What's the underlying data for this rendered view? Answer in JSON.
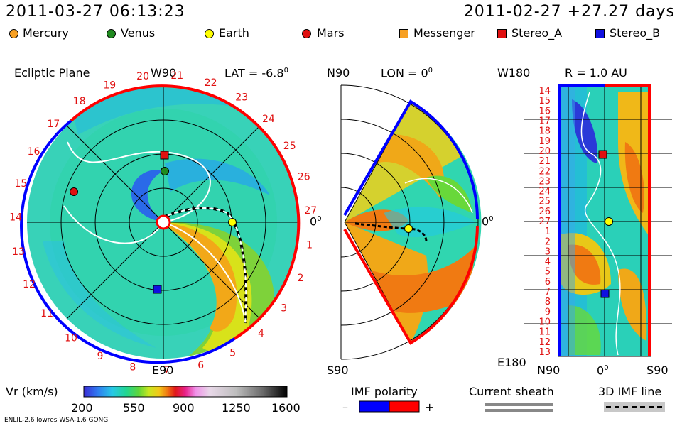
{
  "header": {
    "datetime": "2011-03-27 06:13:23",
    "reference": "2011-02-27 +27.27 days"
  },
  "legend": [
    {
      "name": "Mercury",
      "color": "#f7a023",
      "shape": "circle"
    },
    {
      "name": "Venus",
      "color": "#1f8a1f",
      "shape": "circle"
    },
    {
      "name": "Earth",
      "color": "#ffff00",
      "shape": "circle"
    },
    {
      "name": "Mars",
      "color": "#e01010",
      "shape": "circle"
    },
    {
      "name": "Messenger",
      "color": "#f7a023",
      "shape": "square"
    },
    {
      "name": "Stereo_A",
      "color": "#e01010",
      "shape": "square"
    },
    {
      "name": "Stereo_B",
      "color": "#1010e0",
      "shape": "square"
    }
  ],
  "panels": {
    "ecliptic": {
      "title": "Ecliptic Plane",
      "lat_label": "LAT = -6.8",
      "deg": "0",
      "top_label": "W90",
      "bottom_label": "E90",
      "right_label": "0",
      "rotation_numbers": [
        "20",
        "21",
        "22",
        "23",
        "24",
        "25",
        "26",
        "27",
        "1",
        "2",
        "3",
        "4",
        "5",
        "6",
        "7",
        "8",
        "9",
        "10",
        "11",
        "12",
        "13",
        "14",
        "15",
        "16",
        "17",
        "18",
        "19"
      ]
    },
    "meridional": {
      "top_label": "N90",
      "lon_label": "LON = 0",
      "deg": "0",
      "bottom_label": "S90",
      "right_label": "0"
    },
    "radial": {
      "top_left": "W180",
      "r_label": "R = 1.0 AU",
      "bottom_left": "E180",
      "x_left": "N90",
      "x_mid": "0",
      "x_right": "S90",
      "rows": [
        "14",
        "15",
        "16",
        "17",
        "18",
        "19",
        "20",
        "21",
        "22",
        "23",
        "24",
        "25",
        "26",
        "27",
        "1",
        "2",
        "3",
        "4",
        "5",
        "6",
        "7",
        "8",
        "9",
        "10",
        "11",
        "12",
        "13"
      ]
    }
  },
  "colorbar": {
    "label": "Vr (km/s)",
    "ticks": [
      "200",
      "550",
      "900",
      "1250",
      "1600"
    ],
    "colors": [
      "#3a2bd6",
      "#2f7df0",
      "#27c8e6",
      "#22d690",
      "#5fd63a",
      "#c8e620",
      "#f2c818",
      "#f07a12",
      "#e01818",
      "#e8208a",
      "#f090e8",
      "#e8c8e8",
      "#c8c8c8",
      "#8a8a8a",
      "#3a3a3a",
      "#000000"
    ]
  },
  "imf_polarity": {
    "label": "IMF polarity",
    "minus": "–",
    "plus": "+",
    "neg_color": "#0000ff",
    "pos_color": "#ff0000"
  },
  "current_sheath": {
    "label": "Current sheath"
  },
  "imf_line": {
    "label": "3D IMF line"
  },
  "footer": {
    "model": "ENLIL-2.6 lowres WSA-1.6 GONG"
  }
}
